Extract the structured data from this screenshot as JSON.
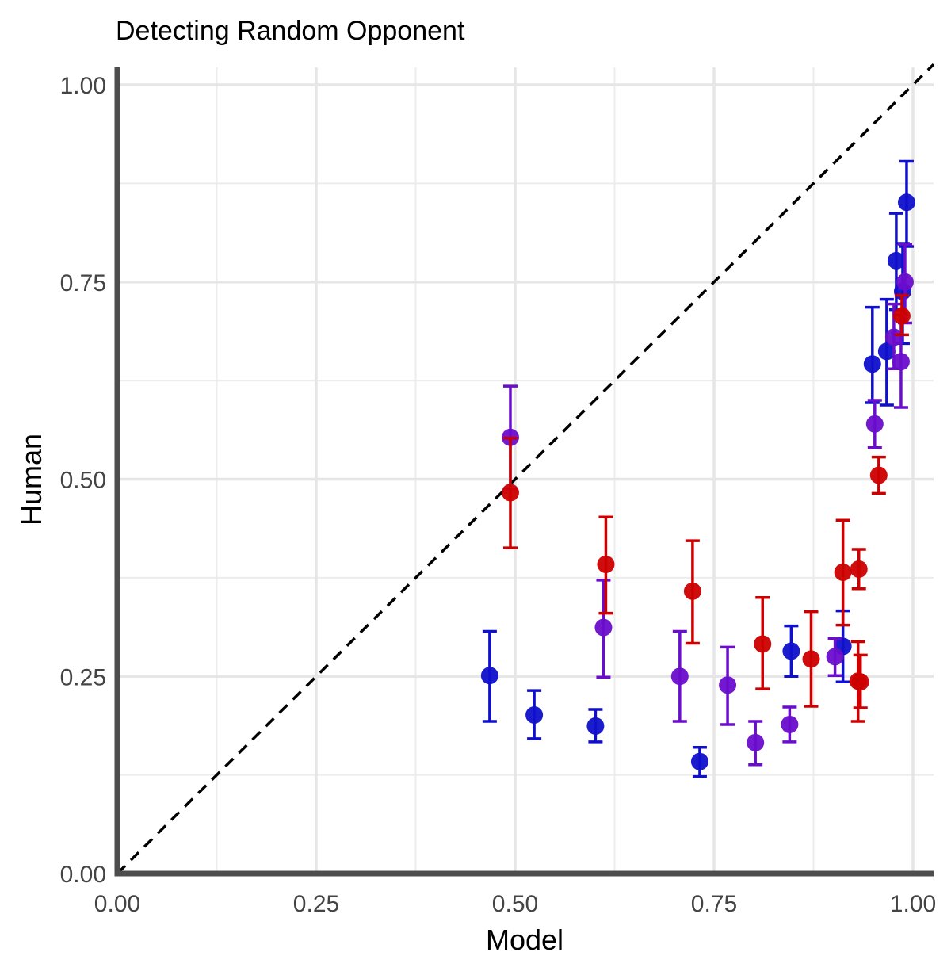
{
  "chart_data": {
    "type": "scatter",
    "title": "Detecting Random Opponent",
    "xlabel": "Model",
    "ylabel": "Human",
    "xlim": [
      0,
      1
    ],
    "ylim": [
      0,
      1
    ],
    "x_ticks": [
      "0.00",
      "0.25",
      "0.50",
      "0.75",
      "1.00"
    ],
    "y_ticks": [
      "0.00",
      "0.25",
      "0.50",
      "0.75",
      "1.00"
    ],
    "grid": true,
    "reference_line": "y = x (dashed)",
    "legend": "none",
    "colors": {
      "blue": "#1010cc",
      "purple": "#6a0dcc",
      "red": "#cc0000"
    },
    "series": [
      {
        "color": "#1010cc",
        "points": [
          {
            "x": 0.468,
            "y": 0.251,
            "lo": 0.193,
            "hi": 0.307
          },
          {
            "x": 0.524,
            "y": 0.201,
            "lo": 0.171,
            "hi": 0.232
          },
          {
            "x": 0.601,
            "y": 0.187,
            "lo": 0.167,
            "hi": 0.208
          },
          {
            "x": 0.732,
            "y": 0.142,
            "lo": 0.123,
            "hi": 0.16
          },
          {
            "x": 0.847,
            "y": 0.282,
            "lo": 0.25,
            "hi": 0.314
          },
          {
            "x": 0.912,
            "y": 0.288,
            "lo": 0.243,
            "hi": 0.333
          },
          {
            "x": 0.949,
            "y": 0.646,
            "lo": 0.597,
            "hi": 0.718
          },
          {
            "x": 0.967,
            "y": 0.662,
            "lo": 0.594,
            "hi": 0.728
          },
          {
            "x": 0.979,
            "y": 0.777,
            "lo": 0.715,
            "hi": 0.837
          },
          {
            "x": 0.987,
            "y": 0.738,
            "lo": 0.672,
            "hi": 0.799
          },
          {
            "x": 0.992,
            "y": 0.851,
            "lo": 0.795,
            "hi": 0.903
          }
        ]
      },
      {
        "color": "#6a0dcc",
        "points": [
          {
            "x": 0.494,
            "y": 0.553,
            "lo": 0.488,
            "hi": 0.618
          },
          {
            "x": 0.611,
            "y": 0.312,
            "lo": 0.249,
            "hi": 0.372
          },
          {
            "x": 0.707,
            "y": 0.25,
            "lo": 0.193,
            "hi": 0.307
          },
          {
            "x": 0.767,
            "y": 0.239,
            "lo": 0.189,
            "hi": 0.287
          },
          {
            "x": 0.802,
            "y": 0.166,
            "lo": 0.138,
            "hi": 0.193
          },
          {
            "x": 0.845,
            "y": 0.189,
            "lo": 0.167,
            "hi": 0.211
          },
          {
            "x": 0.902,
            "y": 0.275,
            "lo": 0.251,
            "hi": 0.298
          },
          {
            "x": 0.952,
            "y": 0.57,
            "lo": 0.54,
            "hi": 0.6
          },
          {
            "x": 0.976,
            "y": 0.68,
            "lo": 0.64,
            "hi": 0.722
          },
          {
            "x": 0.985,
            "y": 0.649,
            "lo": 0.591,
            "hi": 0.708
          },
          {
            "x": 0.99,
            "y": 0.75,
            "lo": 0.698,
            "hi": 0.798
          }
        ]
      },
      {
        "color": "#cc0000",
        "points": [
          {
            "x": 0.494,
            "y": 0.483,
            "lo": 0.413,
            "hi": 0.552
          },
          {
            "x": 0.614,
            "y": 0.392,
            "lo": 0.33,
            "hi": 0.452
          },
          {
            "x": 0.723,
            "y": 0.358,
            "lo": 0.292,
            "hi": 0.422
          },
          {
            "x": 0.811,
            "y": 0.291,
            "lo": 0.234,
            "hi": 0.35
          },
          {
            "x": 0.872,
            "y": 0.272,
            "lo": 0.212,
            "hi": 0.332
          },
          {
            "x": 0.912,
            "y": 0.382,
            "lo": 0.315,
            "hi": 0.448
          },
          {
            "x": 0.932,
            "y": 0.386,
            "lo": 0.361,
            "hi": 0.411
          },
          {
            "x": 0.931,
            "y": 0.244,
            "lo": 0.193,
            "hi": 0.294
          },
          {
            "x": 0.934,
            "y": 0.243,
            "lo": 0.21,
            "hi": 0.277
          },
          {
            "x": 0.957,
            "y": 0.505,
            "lo": 0.482,
            "hi": 0.528
          },
          {
            "x": 0.986,
            "y": 0.707,
            "lo": 0.683,
            "hi": 0.733
          }
        ]
      }
    ]
  }
}
